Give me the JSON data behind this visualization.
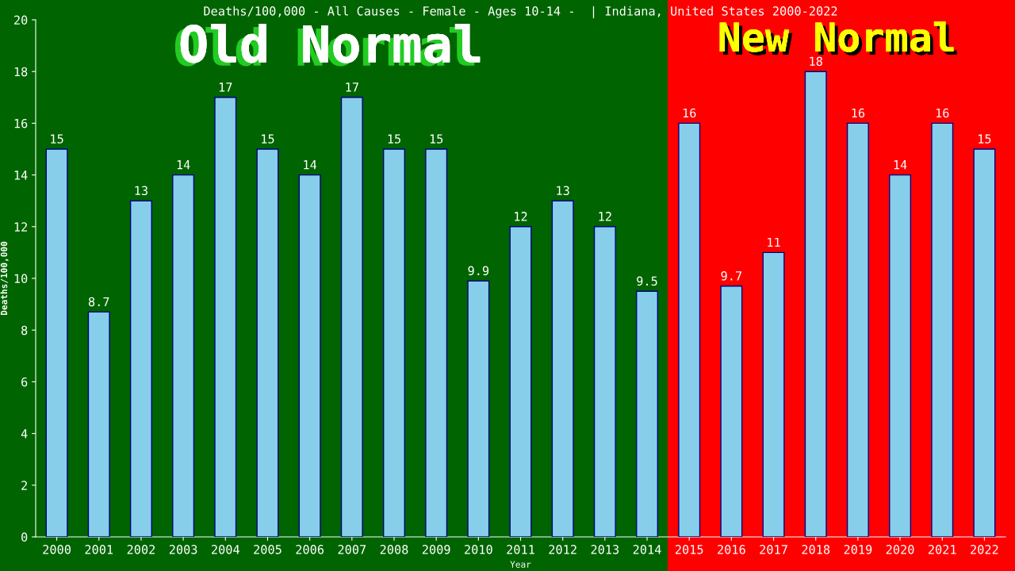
{
  "chart_data": {
    "type": "bar",
    "title": "Deaths/100,000 - All Causes - Female - Ages 10-14 -  | Indiana, United States 2000-2022",
    "xlabel": "Year",
    "ylabel": "Deaths/100,000",
    "categories": [
      "2000",
      "2001",
      "2002",
      "2003",
      "2004",
      "2005",
      "2006",
      "2007",
      "2008",
      "2009",
      "2010",
      "2011",
      "2012",
      "2013",
      "2014",
      "2015",
      "2016",
      "2017",
      "2018",
      "2019",
      "2020",
      "2021",
      "2022"
    ],
    "values": [
      15,
      8.7,
      13,
      14,
      17,
      15,
      14,
      17,
      15,
      15,
      9.9,
      12,
      13,
      12,
      9.5,
      16,
      9.7,
      11,
      18,
      16,
      14,
      16,
      15
    ],
    "color": "#87ceeb",
    "data_labels": true,
    "ylim": [
      0,
      20
    ],
    "yticks": [
      0,
      2,
      4,
      6,
      8,
      10,
      12,
      14,
      16,
      18,
      20
    ],
    "grid": false,
    "legend": false,
    "bands": [
      {
        "axis": "x",
        "from": "2000",
        "to": "2014",
        "label": "Old Normal",
        "color": "#006400"
      },
      {
        "axis": "x",
        "from": "2015",
        "to": "2022",
        "label": "New Normal",
        "color": "#ff0000"
      }
    ]
  }
}
